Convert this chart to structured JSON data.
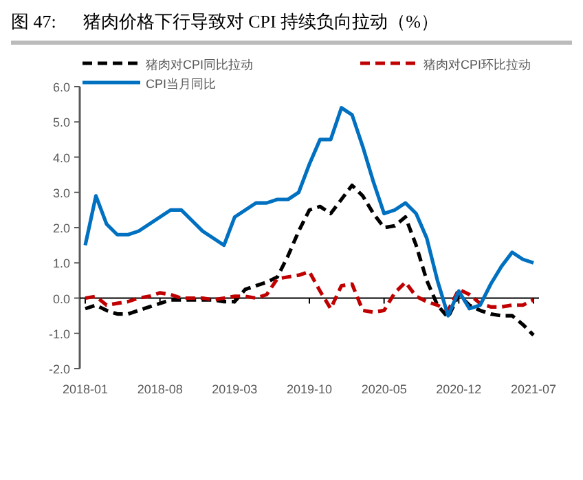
{
  "chart_data": {
    "type": "line",
    "title": "图 47:      猪肉价格下行导致对 CPI 持续负向拉动（%）",
    "categories": [
      "2018-01",
      null,
      null,
      null,
      null,
      null,
      null,
      "2018-08",
      null,
      null,
      null,
      null,
      null,
      null,
      "2019-03",
      null,
      null,
      null,
      null,
      null,
      null,
      "2019-10",
      null,
      null,
      null,
      null,
      null,
      null,
      "2020-05",
      null,
      null,
      null,
      null,
      null,
      null,
      "2020-12",
      null,
      null,
      null,
      null,
      null,
      null,
      "2021-07"
    ],
    "series": [
      {
        "name": "猪肉对CPI同比拉动",
        "color": "#000000",
        "line_style": "dashed",
        "values": [
          -0.3,
          -0.2,
          -0.35,
          -0.45,
          -0.45,
          -0.35,
          -0.25,
          -0.15,
          -0.05,
          -0.05,
          -0.05,
          -0.05,
          -0.05,
          -0.1,
          -0.1,
          0.25,
          0.35,
          0.45,
          0.6,
          1.2,
          1.9,
          2.5,
          2.6,
          2.4,
          2.8,
          3.2,
          2.9,
          2.4,
          2.0,
          2.05,
          2.3,
          1.5,
          0.5,
          -0.2,
          -0.55,
          0.1,
          -0.2,
          -0.35,
          -0.45,
          -0.5,
          -0.5,
          -0.75,
          -1.05
        ]
      },
      {
        "name": "猪肉对CPI环比拉动",
        "color": "#c00000",
        "line_style": "dashed",
        "values": [
          0.0,
          0.05,
          -0.2,
          -0.15,
          -0.1,
          0.0,
          0.05,
          0.15,
          0.1,
          0.0,
          0.0,
          0.0,
          -0.05,
          0.0,
          0.05,
          0.05,
          0.0,
          0.1,
          0.55,
          0.6,
          0.65,
          0.75,
          0.2,
          -0.3,
          0.35,
          0.4,
          -0.35,
          -0.4,
          -0.35,
          0.15,
          0.45,
          0.05,
          -0.1,
          -0.2,
          -0.35,
          0.25,
          0.1,
          -0.15,
          -0.25,
          -0.25,
          -0.2,
          -0.2,
          -0.05
        ]
      },
      {
        "name": "CPI当月同比",
        "color": "#0070c0",
        "line_style": "solid",
        "values": [
          1.5,
          2.9,
          2.1,
          1.8,
          1.8,
          1.9,
          2.1,
          2.3,
          2.5,
          2.5,
          2.2,
          1.9,
          1.7,
          1.5,
          2.3,
          2.5,
          2.7,
          2.7,
          2.8,
          2.8,
          3.0,
          3.8,
          4.5,
          4.5,
          5.4,
          5.2,
          4.3,
          3.3,
          2.4,
          2.5,
          2.7,
          2.4,
          1.7,
          0.5,
          -0.5,
          0.2,
          -0.3,
          -0.2,
          0.4,
          0.9,
          1.3,
          1.1,
          1.0
        ]
      }
    ],
    "ylim": [
      -2,
      6
    ],
    "yticks": [
      {
        "value": -2,
        "label": "-2.0"
      },
      {
        "value": -1,
        "label": "-1.0"
      },
      {
        "value": 0,
        "label": "0.0"
      },
      {
        "value": 1,
        "label": "1.0"
      },
      {
        "value": 2,
        "label": "2.0"
      },
      {
        "value": 3,
        "label": "3.0"
      },
      {
        "value": 4,
        "label": "4.0"
      },
      {
        "value": 5,
        "label": "5.0"
      },
      {
        "value": 6,
        "label": "6.0"
      }
    ],
    "legend": "top",
    "marker": "none"
  }
}
